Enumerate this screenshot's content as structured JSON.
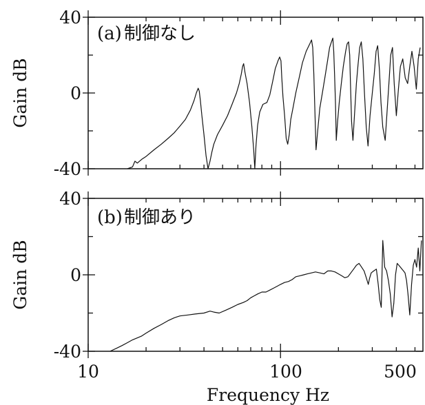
{
  "chart_data": [
    {
      "type": "line",
      "panel_label": "(a)",
      "title": "制御なし",
      "ylabel": "Gain  dB",
      "xscale": "log",
      "xlim": [
        10,
        550
      ],
      "ylim": [
        -40,
        40
      ],
      "yticks": [
        "40",
        "0",
        "-40"
      ],
      "series": [
        {
          "x": [
            16,
            17,
            17.5,
            18,
            19,
            20,
            22,
            24,
            26,
            28,
            30,
            32,
            34,
            35.5,
            36.5,
            37.3,
            37.8,
            38.3,
            39,
            40,
            41,
            42,
            43,
            44,
            45,
            47,
            50,
            53,
            56,
            59,
            61,
            62.5,
            63.5,
            64.3,
            65.3,
            67,
            69,
            71,
            72.5,
            73.5,
            74.5,
            76,
            78,
            81,
            85,
            88,
            91,
            94,
            97,
            99,
            100.5,
            101.5,
            103,
            105,
            107,
            109,
            111,
            113,
            116,
            120,
            125,
            130,
            136,
            142,
            145,
            147,
            149,
            151,
            153,
            156,
            160,
            165,
            170,
            175,
            180,
            184,
            187,
            189,
            191,
            193,
            195,
            198,
            202,
            207,
            212,
            218,
            222,
            226,
            229,
            231,
            234,
            238,
            243,
            248,
            253,
            258,
            263,
            268,
            273,
            279,
            285,
            292,
            300,
            307,
            314,
            320,
            327,
            333,
            340,
            350,
            358,
            366,
            374,
            382,
            390,
            400,
            410,
            420,
            432,
            445,
            458,
            470,
            482,
            495,
            508,
            520,
            532
          ],
          "y": [
            -40,
            -39,
            -36,
            -37,
            -35,
            -33.5,
            -30,
            -27,
            -24,
            -21,
            -17.5,
            -14,
            -9,
            -4,
            0,
            2.5,
            1,
            -4,
            -12,
            -22,
            -33,
            -40,
            -36,
            -31,
            -27,
            -22,
            -17,
            -12,
            -6,
            0,
            5,
            10,
            14,
            15.5,
            11,
            5,
            -5,
            -18,
            -30,
            -40,
            -28,
            -17,
            -10,
            -6,
            -5,
            -1,
            6,
            13,
            17,
            19,
            17,
            8,
            -2,
            -12,
            -24,
            -27,
            -22,
            -14,
            -8,
            0,
            8,
            16,
            22,
            26,
            28,
            24,
            10,
            -10,
            -30,
            -20,
            -8,
            0,
            8,
            16,
            24,
            27,
            29,
            22,
            10,
            -5,
            -25,
            -15,
            -5,
            5,
            14,
            22,
            26,
            27,
            20,
            5,
            -15,
            -25,
            -10,
            5,
            15,
            24,
            27,
            18,
            0,
            -18,
            -28,
            -12,
            0,
            10,
            22,
            25,
            12,
            -5,
            -18,
            -25,
            -10,
            5,
            20,
            24,
            5,
            -12,
            2,
            14,
            18,
            8,
            5,
            14,
            22,
            14,
            2,
            18,
            24
          ]
        }
      ]
    },
    {
      "type": "line",
      "panel_label": "(b)",
      "title": "制御あり",
      "ylabel": "Gain  dB",
      "xlabel": "Frequency  Hz",
      "xscale": "log",
      "xlim": [
        10,
        550
      ],
      "xticks": [
        "10",
        "100",
        "500"
      ],
      "ylim": [
        -40,
        40
      ],
      "yticks": [
        "40",
        "0",
        "-40"
      ],
      "series": [
        {
          "x": [
            13,
            14,
            15,
            16,
            17,
            18,
            19,
            20,
            22,
            24,
            26,
            28,
            30,
            33,
            36,
            40,
            43,
            45,
            48,
            52,
            56,
            60,
            64,
            67,
            70,
            73,
            76,
            80,
            84,
            88,
            92,
            96,
            100,
            105,
            110,
            115,
            120,
            126,
            132,
            138,
            145,
            152,
            160,
            168,
            176,
            184,
            192,
            200,
            208,
            216,
            224,
            232,
            240,
            248,
            256,
            264,
            272,
            278,
            282,
            286,
            290,
            296,
            305,
            315,
            322,
            328,
            334,
            340,
            348,
            356,
            364,
            372,
            380,
            388,
            396,
            404,
            412,
            420,
            428,
            436,
            444,
            452,
            460,
            470,
            480,
            490,
            500,
            510,
            520,
            530,
            540
          ],
          "y": [
            -40,
            -38.5,
            -37,
            -35.5,
            -34,
            -33,
            -32,
            -30.5,
            -28,
            -26,
            -24,
            -22.5,
            -21.5,
            -21,
            -20.5,
            -20,
            -19,
            -19.5,
            -20,
            -18.5,
            -17,
            -15.5,
            -14.5,
            -13.5,
            -12,
            -11,
            -10,
            -9,
            -9,
            -8,
            -7,
            -6,
            -5,
            -4,
            -3.5,
            -2.5,
            -1,
            -0.5,
            0,
            0.5,
            1,
            1.5,
            1,
            0.5,
            2,
            2,
            1.5,
            0.5,
            -0.5,
            -1.5,
            -1,
            1,
            3,
            5,
            6,
            4,
            2,
            -1,
            -3,
            -5,
            -2,
            1,
            2,
            3,
            -5,
            -13,
            -17,
            18,
            4,
            2,
            -3,
            -10,
            -22,
            -15,
            0,
            6,
            5,
            4,
            3,
            2,
            1,
            -3,
            -10,
            -21,
            -5,
            5,
            8,
            4,
            14,
            2,
            18
          ]
        }
      ]
    }
  ]
}
